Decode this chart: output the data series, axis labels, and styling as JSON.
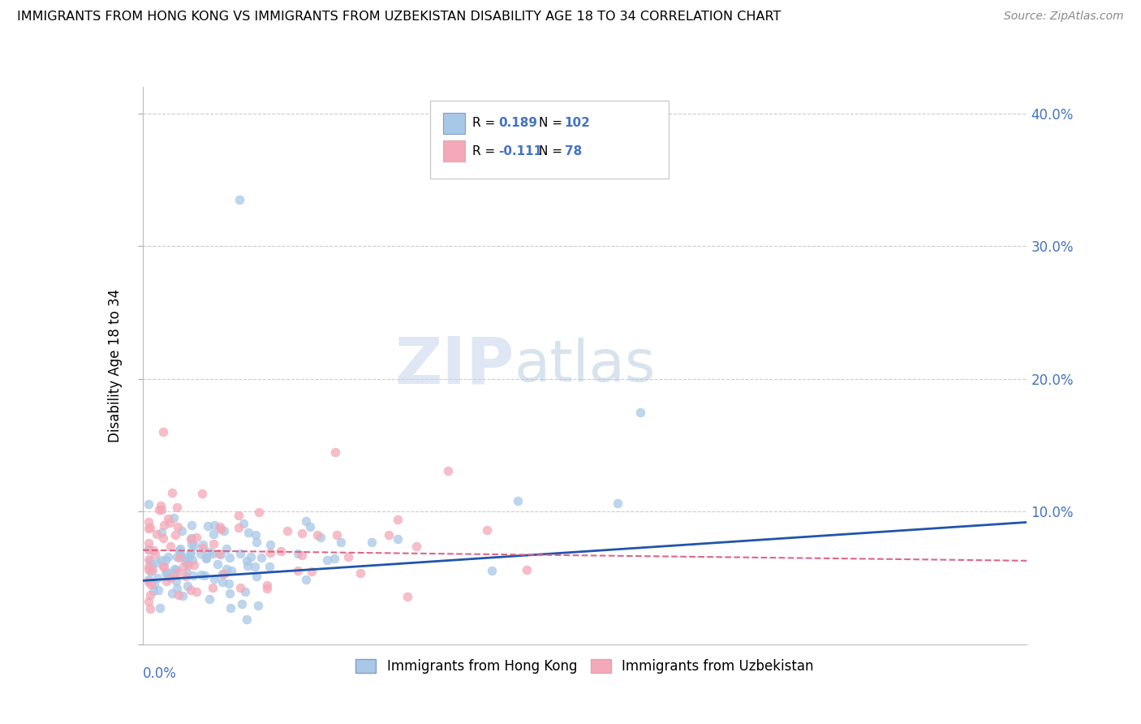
{
  "title": "IMMIGRANTS FROM HONG KONG VS IMMIGRANTS FROM UZBEKISTAN DISABILITY AGE 18 TO 34 CORRELATION CHART",
  "source": "Source: ZipAtlas.com",
  "ylabel": "Disability Age 18 to 34",
  "xmin": 0.0,
  "xmax": 0.08,
  "ymin": 0.0,
  "ymax": 0.42,
  "R_hk": 0.189,
  "N_hk": 102,
  "R_uz": -0.111,
  "N_uz": 78,
  "color_hk": "#a8c8e8",
  "color_uz": "#f4a8b8",
  "color_hk_line": "#2255aa",
  "color_uz_line": "#dd6688",
  "color_hk_text": "#4472c4",
  "color_uz_text": "#dd6688",
  "watermark_zip": "ZIP",
  "watermark_atlas": "atlas",
  "legend_label_hk": "Immigrants from Hong Kong",
  "legend_label_uz": "Immigrants from Uzbekistan"
}
